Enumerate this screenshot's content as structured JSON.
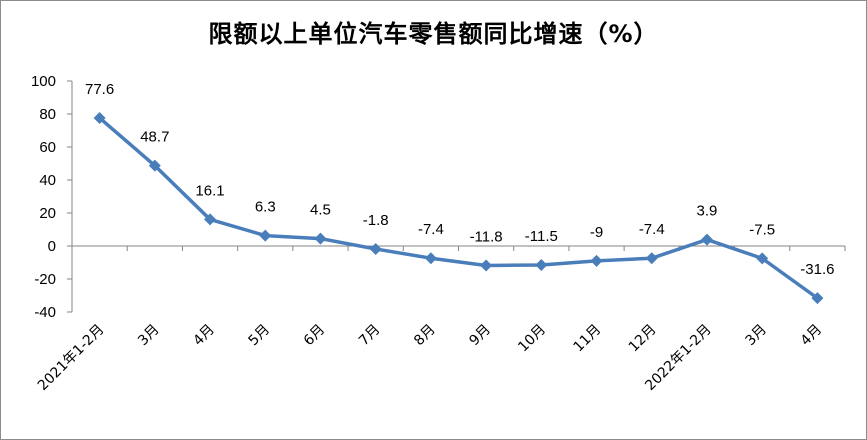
{
  "chart_data": {
    "type": "line",
    "title": "限额以上单位汽车零售额同比增速（%）",
    "xlabel": "",
    "ylabel": "",
    "categories": [
      "2021年1-2月",
      "3月",
      "4月",
      "5月",
      "6月",
      "7月",
      "8月",
      "9月",
      "10月",
      "11月",
      "12月",
      "2022年1-2月",
      "3月",
      "4月"
    ],
    "series": [
      {
        "values": [
          77.6,
          48.7,
          16.1,
          6.3,
          4.5,
          -1.8,
          -7.4,
          -11.8,
          -11.5,
          -9,
          -7.4,
          3.9,
          -7.5,
          -31.6
        ],
        "labels": [
          "77.6",
          "48.7",
          "16.1",
          "6.3",
          "4.5",
          "-1.8",
          "-7.4",
          "-11.8",
          "-11.5",
          "-9",
          "-7.4",
          "3.9",
          "-7.5",
          "-31.6"
        ],
        "color": "#4a7ebb"
      }
    ],
    "ylim": [
      -40,
      100
    ],
    "yticks": [
      -40,
      -20,
      0,
      20,
      40,
      60,
      80,
      100
    ],
    "ytick_labels": [
      "-40",
      "-20",
      "0",
      "20",
      "40",
      "60",
      "80",
      "100"
    ],
    "grid": false,
    "legend": "none"
  }
}
